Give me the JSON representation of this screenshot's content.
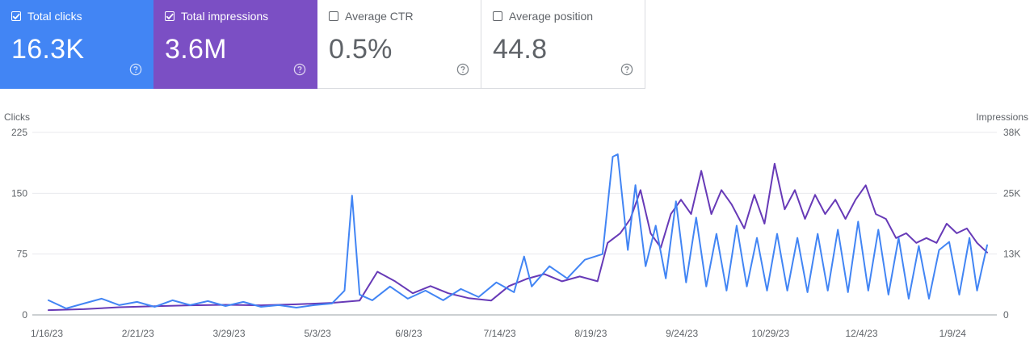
{
  "metrics": [
    {
      "label": "Total clicks",
      "value": "16.3K",
      "checked": true,
      "color": "#4285f4"
    },
    {
      "label": "Total impressions",
      "value": "3.6M",
      "checked": true,
      "color": "#7b4fc4"
    },
    {
      "label": "Average CTR",
      "value": "0.5%",
      "checked": false,
      "color": "#ffffff"
    },
    {
      "label": "Average position",
      "value": "44.8",
      "checked": false,
      "color": "#ffffff"
    }
  ],
  "help_icon": "help-circle-icon",
  "chart_data": {
    "type": "line",
    "title": "",
    "ylabel_left": "Clicks",
    "ylabel_right": "Impressions",
    "yticks_left": [
      "0",
      "75",
      "150",
      "225"
    ],
    "ylim_left": [
      0,
      225
    ],
    "yticks_right": [
      "0",
      "13K",
      "25K",
      "38K"
    ],
    "ylim_right": [
      0,
      38000
    ],
    "grid": true,
    "x_start": "1/16/23",
    "x_end": "1/23/24",
    "xticks": [
      {
        "date": "2023-01-16",
        "label": "1/16/23"
      },
      {
        "date": "2023-02-21",
        "label": "2/21/23"
      },
      {
        "date": "2023-03-29",
        "label": "3/29/23"
      },
      {
        "date": "2023-05-03",
        "label": "5/3/23"
      },
      {
        "date": "2023-06-08",
        "label": "6/8/23"
      },
      {
        "date": "2023-07-14",
        "label": "7/14/23"
      },
      {
        "date": "2023-08-19",
        "label": "8/19/23"
      },
      {
        "date": "2023-09-24",
        "label": "9/24/23"
      },
      {
        "date": "2023-10-29",
        "label": "10/29/23"
      },
      {
        "date": "2023-12-04",
        "label": "12/4/23"
      },
      {
        "date": "2024-01-09",
        "label": "1/9/24"
      }
    ],
    "series": [
      {
        "name": "Clicks",
        "axis": "left",
        "color": "#4285f4",
        "points": [
          [
            "2023-01-16",
            18
          ],
          [
            "2023-01-23",
            8
          ],
          [
            "2023-01-30",
            14
          ],
          [
            "2023-02-06",
            20
          ],
          [
            "2023-02-13",
            12
          ],
          [
            "2023-02-20",
            16
          ],
          [
            "2023-02-27",
            10
          ],
          [
            "2023-03-06",
            18
          ],
          [
            "2023-03-13",
            12
          ],
          [
            "2023-03-20",
            17
          ],
          [
            "2023-03-27",
            11
          ],
          [
            "2023-04-03",
            16
          ],
          [
            "2023-04-10",
            10
          ],
          [
            "2023-04-17",
            12
          ],
          [
            "2023-04-24",
            9
          ],
          [
            "2023-05-01",
            12
          ],
          [
            "2023-05-08",
            14
          ],
          [
            "2023-05-13",
            30
          ],
          [
            "2023-05-16",
            147
          ],
          [
            "2023-05-19",
            25
          ],
          [
            "2023-05-24",
            18
          ],
          [
            "2023-05-31",
            35
          ],
          [
            "2023-06-07",
            20
          ],
          [
            "2023-06-14",
            30
          ],
          [
            "2023-06-21",
            18
          ],
          [
            "2023-06-28",
            32
          ],
          [
            "2023-07-05",
            22
          ],
          [
            "2023-07-12",
            40
          ],
          [
            "2023-07-19",
            28
          ],
          [
            "2023-07-23",
            72
          ],
          [
            "2023-07-26",
            35
          ],
          [
            "2023-08-02",
            60
          ],
          [
            "2023-08-09",
            45
          ],
          [
            "2023-08-16",
            68
          ],
          [
            "2023-08-23",
            75
          ],
          [
            "2023-08-27",
            195
          ],
          [
            "2023-08-29",
            198
          ],
          [
            "2023-09-02",
            80
          ],
          [
            "2023-09-05",
            160
          ],
          [
            "2023-09-09",
            60
          ],
          [
            "2023-09-13",
            110
          ],
          [
            "2023-09-17",
            45
          ],
          [
            "2023-09-21",
            140
          ],
          [
            "2023-09-25",
            40
          ],
          [
            "2023-09-29",
            120
          ],
          [
            "2023-10-03",
            35
          ],
          [
            "2023-10-07",
            100
          ],
          [
            "2023-10-11",
            30
          ],
          [
            "2023-10-15",
            110
          ],
          [
            "2023-10-19",
            35
          ],
          [
            "2023-10-23",
            95
          ],
          [
            "2023-10-27",
            30
          ],
          [
            "2023-10-31",
            100
          ],
          [
            "2023-11-04",
            30
          ],
          [
            "2023-11-08",
            95
          ],
          [
            "2023-11-12",
            28
          ],
          [
            "2023-11-16",
            100
          ],
          [
            "2023-11-20",
            30
          ],
          [
            "2023-11-24",
            105
          ],
          [
            "2023-11-28",
            28
          ],
          [
            "2023-12-02",
            115
          ],
          [
            "2023-12-06",
            30
          ],
          [
            "2023-12-10",
            105
          ],
          [
            "2023-12-14",
            25
          ],
          [
            "2023-12-18",
            95
          ],
          [
            "2023-12-22",
            20
          ],
          [
            "2023-12-26",
            85
          ],
          [
            "2023-12-30",
            20
          ],
          [
            "2024-01-03",
            80
          ],
          [
            "2024-01-07",
            90
          ],
          [
            "2024-01-11",
            25
          ],
          [
            "2024-01-15",
            95
          ],
          [
            "2024-01-18",
            30
          ],
          [
            "2024-01-22",
            86
          ]
        ]
      },
      {
        "name": "Impressions",
        "axis": "right",
        "color": "#673ab7",
        "points": [
          [
            "2023-01-16",
            1000
          ],
          [
            "2023-01-30",
            1200
          ],
          [
            "2023-02-13",
            1600
          ],
          [
            "2023-02-27",
            1800
          ],
          [
            "2023-03-13",
            2000
          ],
          [
            "2023-03-27",
            2100
          ],
          [
            "2023-04-10",
            2000
          ],
          [
            "2023-04-24",
            2200
          ],
          [
            "2023-05-08",
            2500
          ],
          [
            "2023-05-19",
            3000
          ],
          [
            "2023-05-26",
            9000
          ],
          [
            "2023-06-02",
            7000
          ],
          [
            "2023-06-09",
            4500
          ],
          [
            "2023-06-16",
            6000
          ],
          [
            "2023-06-23",
            4500
          ],
          [
            "2023-07-01",
            3500
          ],
          [
            "2023-07-10",
            3000
          ],
          [
            "2023-07-17",
            6000
          ],
          [
            "2023-07-24",
            7500
          ],
          [
            "2023-07-31",
            8500
          ],
          [
            "2023-08-07",
            7000
          ],
          [
            "2023-08-14",
            8000
          ],
          [
            "2023-08-21",
            7000
          ],
          [
            "2023-08-25",
            15000
          ],
          [
            "2023-08-30",
            17000
          ],
          [
            "2023-09-03",
            20000
          ],
          [
            "2023-09-07",
            26000
          ],
          [
            "2023-09-11",
            17000
          ],
          [
            "2023-09-15",
            14000
          ],
          [
            "2023-09-19",
            21000
          ],
          [
            "2023-09-23",
            24000
          ],
          [
            "2023-09-27",
            21000
          ],
          [
            "2023-10-01",
            30000
          ],
          [
            "2023-10-05",
            21000
          ],
          [
            "2023-10-09",
            26000
          ],
          [
            "2023-10-13",
            23000
          ],
          [
            "2023-10-18",
            18000
          ],
          [
            "2023-10-22",
            25000
          ],
          [
            "2023-10-26",
            19000
          ],
          [
            "2023-10-30",
            31500
          ],
          [
            "2023-11-03",
            22000
          ],
          [
            "2023-11-07",
            26000
          ],
          [
            "2023-11-11",
            20000
          ],
          [
            "2023-11-15",
            25000
          ],
          [
            "2023-11-19",
            21000
          ],
          [
            "2023-11-23",
            24000
          ],
          [
            "2023-11-27",
            20000
          ],
          [
            "2023-12-01",
            24000
          ],
          [
            "2023-12-05",
            27000
          ],
          [
            "2023-12-09",
            21000
          ],
          [
            "2023-12-13",
            20000
          ],
          [
            "2023-12-17",
            16000
          ],
          [
            "2023-12-21",
            17000
          ],
          [
            "2023-12-25",
            15000
          ],
          [
            "2023-12-29",
            16000
          ],
          [
            "2024-01-02",
            15000
          ],
          [
            "2024-01-06",
            19000
          ],
          [
            "2024-01-10",
            17000
          ],
          [
            "2024-01-14",
            18000
          ],
          [
            "2024-01-18",
            15000
          ],
          [
            "2024-01-22",
            13000
          ]
        ]
      }
    ]
  }
}
